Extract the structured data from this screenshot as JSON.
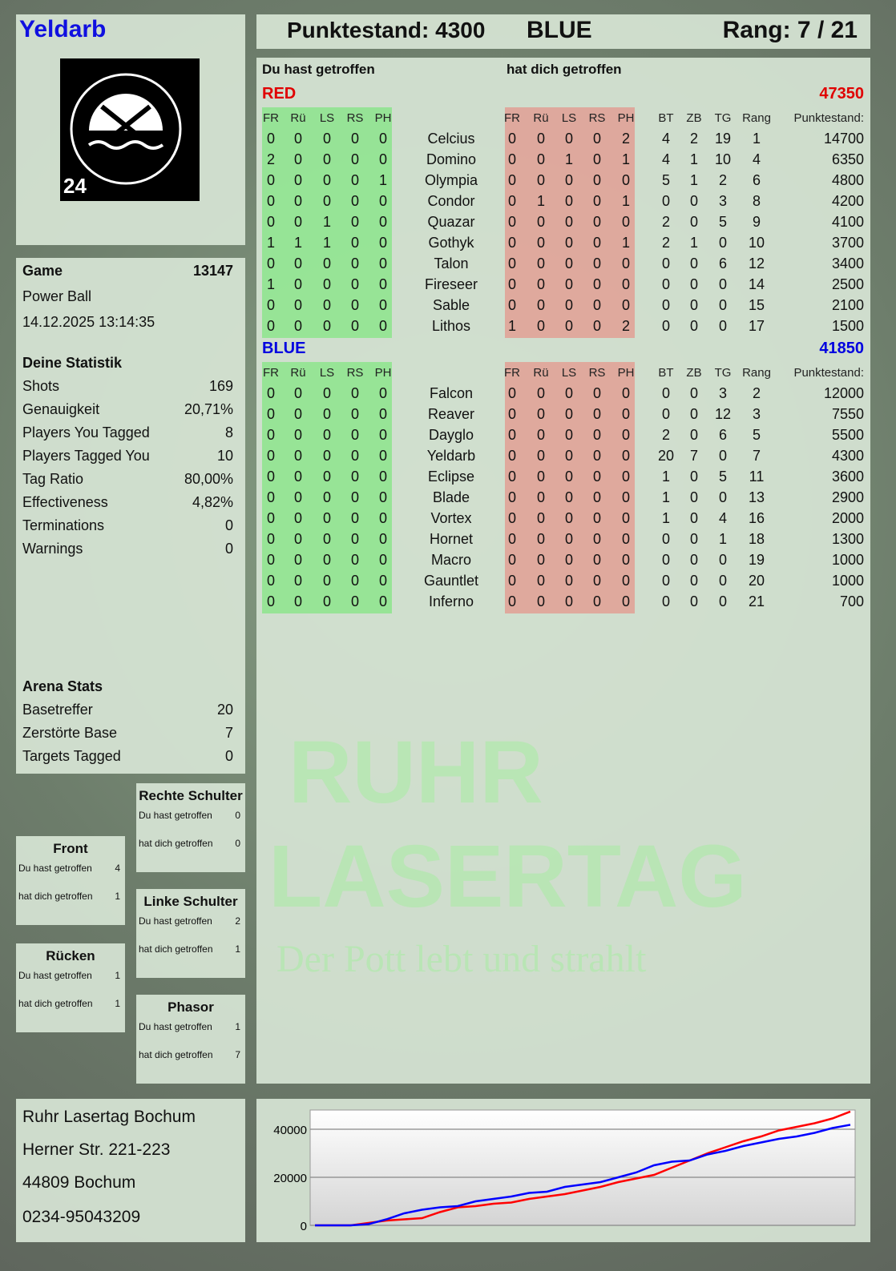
{
  "player": {
    "name": "Yeldarb",
    "logo_text": "RUHR LASERTAG 24"
  },
  "header": {
    "score_label": "Punktestand: 4300",
    "team": "BLUE",
    "rank_label": "Rang: 7 / 21"
  },
  "game": {
    "label": "Game",
    "id": "13147",
    "mode": "Power Ball",
    "datetime": "14.12.2025 13:14:35"
  },
  "stats": {
    "title": "Deine Statistik",
    "items": [
      {
        "label": "Shots",
        "value": "169"
      },
      {
        "label": "Genauigkeit",
        "value": "20,71%"
      },
      {
        "label": "Players You Tagged",
        "value": "8"
      },
      {
        "label": "Players Tagged You",
        "value": "10"
      },
      {
        "label": "Tag Ratio",
        "value": "80,00%"
      },
      {
        "label": "Effectiveness",
        "value": "4,82%"
      },
      {
        "label": "Terminations",
        "value": "0"
      },
      {
        "label": "Warnings",
        "value": "0"
      }
    ]
  },
  "arena": {
    "title": "Arena Stats",
    "items": [
      {
        "label": "Basetreffer",
        "value": "20"
      },
      {
        "label": "Zerstörte Base",
        "value": "7"
      },
      {
        "label": "Targets Tagged",
        "value": "0"
      }
    ]
  },
  "hitzones": [
    {
      "title": "Rechte Schulter",
      "you_hit_label": "Du hast getroffen",
      "you_hit": "0",
      "hit_you_label": "hat dich getroffen",
      "hit_you": "0"
    },
    {
      "title": "Front",
      "you_hit_label": "Du hast getroffen",
      "you_hit": "4",
      "hit_you_label": "hat dich getroffen",
      "hit_you": "1"
    },
    {
      "title": "Linke Schulter",
      "you_hit_label": "Du hast getroffen",
      "you_hit": "2",
      "hit_you_label": "hat dich getroffen",
      "hit_you": "1"
    },
    {
      "title": "Rücken",
      "you_hit_label": "Du hast getroffen",
      "you_hit": "1",
      "hit_you_label": "hat dich getroffen",
      "hit_you": "1"
    },
    {
      "title": "Phasor",
      "you_hit_label": "Du hast getroffen",
      "you_hit": "1",
      "hit_you_label": "hat dich getroffen",
      "hit_you": "7"
    }
  ],
  "address": {
    "lines": [
      "Ruhr Lasertag Bochum",
      "Herner Str. 221-223",
      "44809 Bochum",
      "0234-95043209"
    ]
  },
  "table": {
    "you_hit_title": "Du hast getroffen",
    "hit_you_title": "hat dich getroffen",
    "hit_cols": [
      "FR",
      "Rü",
      "LS",
      "RS",
      "PH"
    ],
    "stat_cols": [
      "BT",
      "ZB",
      "TG",
      "Rang",
      "Punktestand:"
    ],
    "teams": [
      {
        "name": "RED",
        "total": "47350",
        "color": "#e00000",
        "rows": [
          [
            "Celcius",
            [
              0,
              0,
              0,
              0,
              0
            ],
            [
              0,
              0,
              0,
              0,
              2
            ],
            4,
            2,
            19,
            1,
            14700
          ],
          [
            "Domino",
            [
              2,
              0,
              0,
              0,
              0
            ],
            [
              0,
              0,
              1,
              0,
              1
            ],
            4,
            1,
            10,
            4,
            6350
          ],
          [
            "Olympia",
            [
              0,
              0,
              0,
              0,
              1
            ],
            [
              0,
              0,
              0,
              0,
              0
            ],
            5,
            1,
            2,
            6,
            4800
          ],
          [
            "Condor",
            [
              0,
              0,
              0,
              0,
              0
            ],
            [
              0,
              1,
              0,
              0,
              1
            ],
            0,
            0,
            3,
            8,
            4200
          ],
          [
            "Quazar",
            [
              0,
              0,
              1,
              0,
              0
            ],
            [
              0,
              0,
              0,
              0,
              0
            ],
            2,
            0,
            5,
            9,
            4100
          ],
          [
            "Gothyk",
            [
              1,
              1,
              1,
              0,
              0
            ],
            [
              0,
              0,
              0,
              0,
              1
            ],
            2,
            1,
            0,
            10,
            3700
          ],
          [
            "Talon",
            [
              0,
              0,
              0,
              0,
              0
            ],
            [
              0,
              0,
              0,
              0,
              0
            ],
            0,
            0,
            6,
            12,
            3400
          ],
          [
            "Fireseer",
            [
              1,
              0,
              0,
              0,
              0
            ],
            [
              0,
              0,
              0,
              0,
              0
            ],
            0,
            0,
            0,
            14,
            2500
          ],
          [
            "Sable",
            [
              0,
              0,
              0,
              0,
              0
            ],
            [
              0,
              0,
              0,
              0,
              0
            ],
            0,
            0,
            0,
            15,
            2100
          ],
          [
            "Lithos",
            [
              0,
              0,
              0,
              0,
              0
            ],
            [
              1,
              0,
              0,
              0,
              2
            ],
            0,
            0,
            0,
            17,
            1500
          ]
        ]
      },
      {
        "name": "BLUE",
        "total": "41850",
        "color": "#0000e0",
        "rows": [
          [
            "Falcon",
            [
              0,
              0,
              0,
              0,
              0
            ],
            [
              0,
              0,
              0,
              0,
              0
            ],
            0,
            0,
            3,
            2,
            12000
          ],
          [
            "Reaver",
            [
              0,
              0,
              0,
              0,
              0
            ],
            [
              0,
              0,
              0,
              0,
              0
            ],
            0,
            0,
            12,
            3,
            7550
          ],
          [
            "Dayglo",
            [
              0,
              0,
              0,
              0,
              0
            ],
            [
              0,
              0,
              0,
              0,
              0
            ],
            2,
            0,
            6,
            5,
            5500
          ],
          [
            "Yeldarb",
            [
              0,
              0,
              0,
              0,
              0
            ],
            [
              0,
              0,
              0,
              0,
              0
            ],
            20,
            7,
            0,
            7,
            4300
          ],
          [
            "Eclipse",
            [
              0,
              0,
              0,
              0,
              0
            ],
            [
              0,
              0,
              0,
              0,
              0
            ],
            1,
            0,
            5,
            11,
            3600
          ],
          [
            "Blade",
            [
              0,
              0,
              0,
              0,
              0
            ],
            [
              0,
              0,
              0,
              0,
              0
            ],
            1,
            0,
            0,
            13,
            2900
          ],
          [
            "Vortex",
            [
              0,
              0,
              0,
              0,
              0
            ],
            [
              0,
              0,
              0,
              0,
              0
            ],
            1,
            0,
            4,
            16,
            2000
          ],
          [
            "Hornet",
            [
              0,
              0,
              0,
              0,
              0
            ],
            [
              0,
              0,
              0,
              0,
              0
            ],
            0,
            0,
            1,
            18,
            1300
          ],
          [
            "Macro",
            [
              0,
              0,
              0,
              0,
              0
            ],
            [
              0,
              0,
              0,
              0,
              0
            ],
            0,
            0,
            0,
            19,
            1000
          ],
          [
            "Gauntlet",
            [
              0,
              0,
              0,
              0,
              0
            ],
            [
              0,
              0,
              0,
              0,
              0
            ],
            0,
            0,
            0,
            20,
            1000
          ],
          [
            "Inferno",
            [
              0,
              0,
              0,
              0,
              0
            ],
            [
              0,
              0,
              0,
              0,
              0
            ],
            0,
            0,
            0,
            21,
            700
          ]
        ]
      }
    ]
  },
  "watermark": {
    "line1": "RUHR",
    "line2": "LASERTAG",
    "slogan": "Der Pott lebt und strahlt"
  },
  "chart_data": {
    "type": "line",
    "ylim": [
      0,
      48000
    ],
    "yticks": [
      0,
      20000,
      40000
    ],
    "grid": true,
    "series": [
      {
        "color": "#ff0000",
        "values": [
          0,
          0,
          0,
          1000,
          2000,
          2500,
          3000,
          5500,
          7500,
          8000,
          9000,
          9500,
          11000,
          12000,
          13000,
          14500,
          16000,
          18000,
          19500,
          21000,
          24000,
          27000,
          30000,
          32500,
          35000,
          37000,
          39500,
          41000,
          42500,
          44500,
          47350
        ]
      },
      {
        "color": "#0000ff",
        "values": [
          0,
          0,
          0,
          500,
          2500,
          5000,
          6500,
          7500,
          8000,
          10000,
          11000,
          12000,
          13500,
          14000,
          16000,
          17000,
          18000,
          20000,
          22000,
          25000,
          26500,
          27000,
          29500,
          31000,
          33000,
          34500,
          36000,
          37000,
          38500,
          40500,
          41850
        ]
      }
    ]
  }
}
